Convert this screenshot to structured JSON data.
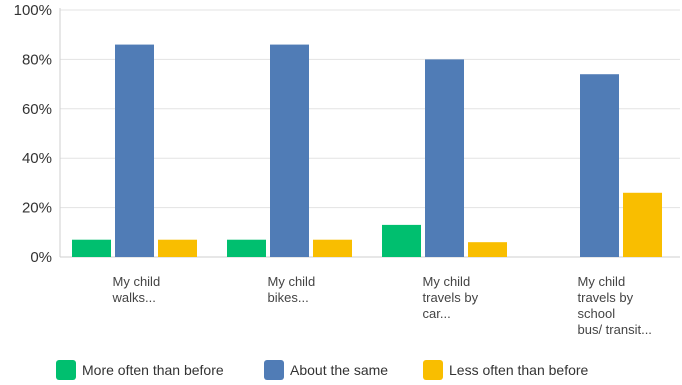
{
  "chart_data": {
    "type": "bar",
    "categories": [
      [
        "My child",
        "walks..."
      ],
      [
        "My child",
        "bikes..."
      ],
      [
        "My child",
        "travels by",
        "car..."
      ],
      [
        "My child",
        "travels by",
        "school",
        "bus/ transit..."
      ]
    ],
    "series": [
      {
        "name": "More often than before",
        "color": "#00bf6f",
        "values": [
          7,
          7,
          13,
          0
        ]
      },
      {
        "name": "About the same",
        "color": "#507cb6",
        "values": [
          86,
          86,
          80,
          74
        ]
      },
      {
        "name": "Less often than before",
        "color": "#f9be00",
        "values": [
          7,
          7,
          6,
          26
        ]
      }
    ],
    "ylim": [
      0,
      100
    ],
    "yticks": [
      "0%",
      "20%",
      "40%",
      "60%",
      "80%",
      "100%"
    ],
    "grid": true,
    "legend_position": "bottom"
  }
}
